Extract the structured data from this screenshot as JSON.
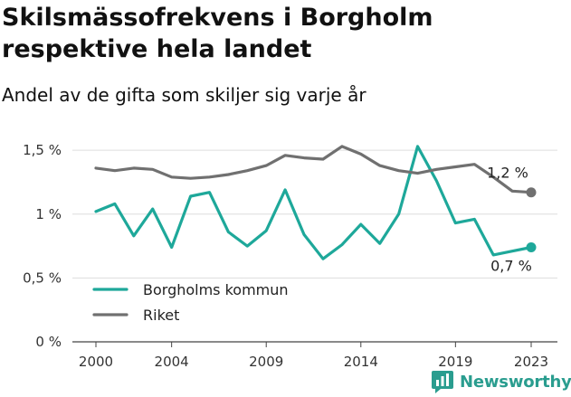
{
  "header": {
    "title": "Skilsmässofrekvens i Borgholm respektive hela landet",
    "subtitle": "Andel av de gifta som skiljer sig varje år"
  },
  "brand": {
    "name": "Newsworthy",
    "icon": "newsworthy-logo-icon",
    "color": "#2a9d8f"
  },
  "chart_data": {
    "type": "line",
    "x": [
      2000,
      2001,
      2002,
      2003,
      2004,
      2005,
      2006,
      2007,
      2008,
      2009,
      2010,
      2011,
      2012,
      2013,
      2014,
      2015,
      2016,
      2017,
      2018,
      2019,
      2020,
      2021,
      2022,
      2023
    ],
    "xticks": [
      2000,
      2004,
      2009,
      2014,
      2019,
      2023
    ],
    "yticks": [
      0,
      0.5,
      1,
      1.5
    ],
    "ytick_labels": [
      "0 %",
      "0,5 %",
      "1 %",
      "1,5 %"
    ],
    "ylim": [
      0,
      1.6
    ],
    "grid": true,
    "legend_position": "bottom-left",
    "series": [
      {
        "name": "Borgholms kommun",
        "color": "#1ea89a",
        "end_label": "0,7 %",
        "values": [
          1.02,
          1.08,
          0.83,
          1.04,
          0.74,
          1.14,
          1.17,
          0.86,
          0.75,
          0.87,
          1.19,
          0.84,
          0.65,
          0.76,
          0.92,
          0.77,
          1.0,
          1.53,
          1.26,
          0.93,
          0.96,
          0.68,
          0.71,
          0.74
        ]
      },
      {
        "name": "Riket",
        "color": "#707070",
        "end_label": "1,2 %",
        "values": [
          1.36,
          1.34,
          1.36,
          1.35,
          1.29,
          1.28,
          1.29,
          1.31,
          1.34,
          1.38,
          1.46,
          1.44,
          1.43,
          1.53,
          1.47,
          1.38,
          1.34,
          1.32,
          1.35,
          1.37,
          1.39,
          1.29,
          1.18,
          1.17
        ]
      }
    ]
  }
}
